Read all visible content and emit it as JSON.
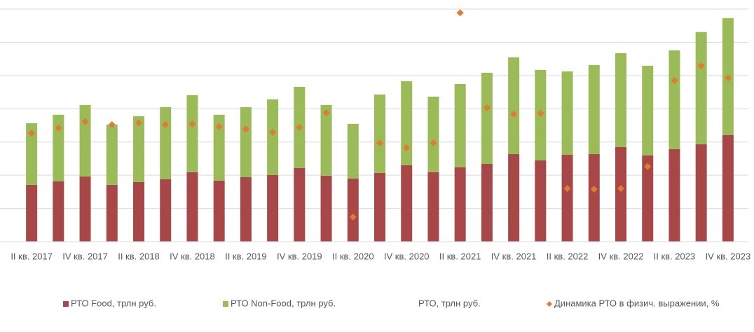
{
  "chart_data": {
    "type": "stacked_bar_line",
    "categories": [
      "II кв. 2017",
      null,
      "IV кв. 2017",
      null,
      "II кв. 2018",
      null,
      "IV кв. 2018",
      null,
      "II кв. 2019",
      null,
      "IV кв. 2019",
      null,
      "II кв. 2020",
      null,
      "IV кв. 2020",
      null,
      "II кв. 2021",
      null,
      "IV кв. 2021",
      null,
      "II кв. 2022",
      null,
      "IV кв. 2022",
      null,
      "II кв. 2023",
      null,
      "IV кв. 2023"
    ],
    "series": [
      {
        "name": "РТО Food, трлн руб.",
        "color": "#a84747",
        "values": [
          3.42,
          3.63,
          3.92,
          3.42,
          3.59,
          3.76,
          4.18,
          3.67,
          3.88,
          4.01,
          4.43,
          3.97,
          3.8,
          4.14,
          4.6,
          4.18,
          4.47,
          4.68,
          5.27,
          4.89,
          5.23,
          5.27,
          5.7,
          5.19,
          5.57,
          5.86,
          6.41
        ]
      },
      {
        "name": "РТО Non-Food, трлн руб.",
        "color": "#9bbb59",
        "values": [
          3.71,
          4.01,
          4.31,
          3.63,
          3.96,
          4.34,
          4.64,
          3.97,
          4.22,
          4.56,
          4.89,
          4.26,
          3.29,
          4.72,
          5.06,
          4.55,
          5.02,
          5.49,
          5.83,
          5.45,
          5.02,
          5.36,
          5.65,
          5.4,
          5.95,
          6.76,
          7.05
        ]
      },
      {
        "name": "РТО, трлн руб."
      },
      {
        "name": "Динамика РТО в физич. выражении, %",
        "color": "#e07b30",
        "axis": "y2",
        "values": [
          2.7,
          4.2,
          6.1,
          5.2,
          5.8,
          5.2,
          5.4,
          4.6,
          3.9,
          2.9,
          4.4,
          8.8,
          -22.6,
          -0.3,
          -1.7,
          -0.3,
          38.9,
          10.3,
          8.4,
          8.6,
          -14.0,
          -14.2,
          -14.0,
          -7.4,
          18.5,
          22.9,
          19.3
        ]
      }
    ],
    "ylim": [
      0,
      14
    ],
    "yticks": [
      0,
      2,
      4,
      6,
      8,
      10,
      12,
      14
    ],
    "y2lim": [
      -30,
      40
    ],
    "grid": true,
    "legend": "bottom"
  }
}
